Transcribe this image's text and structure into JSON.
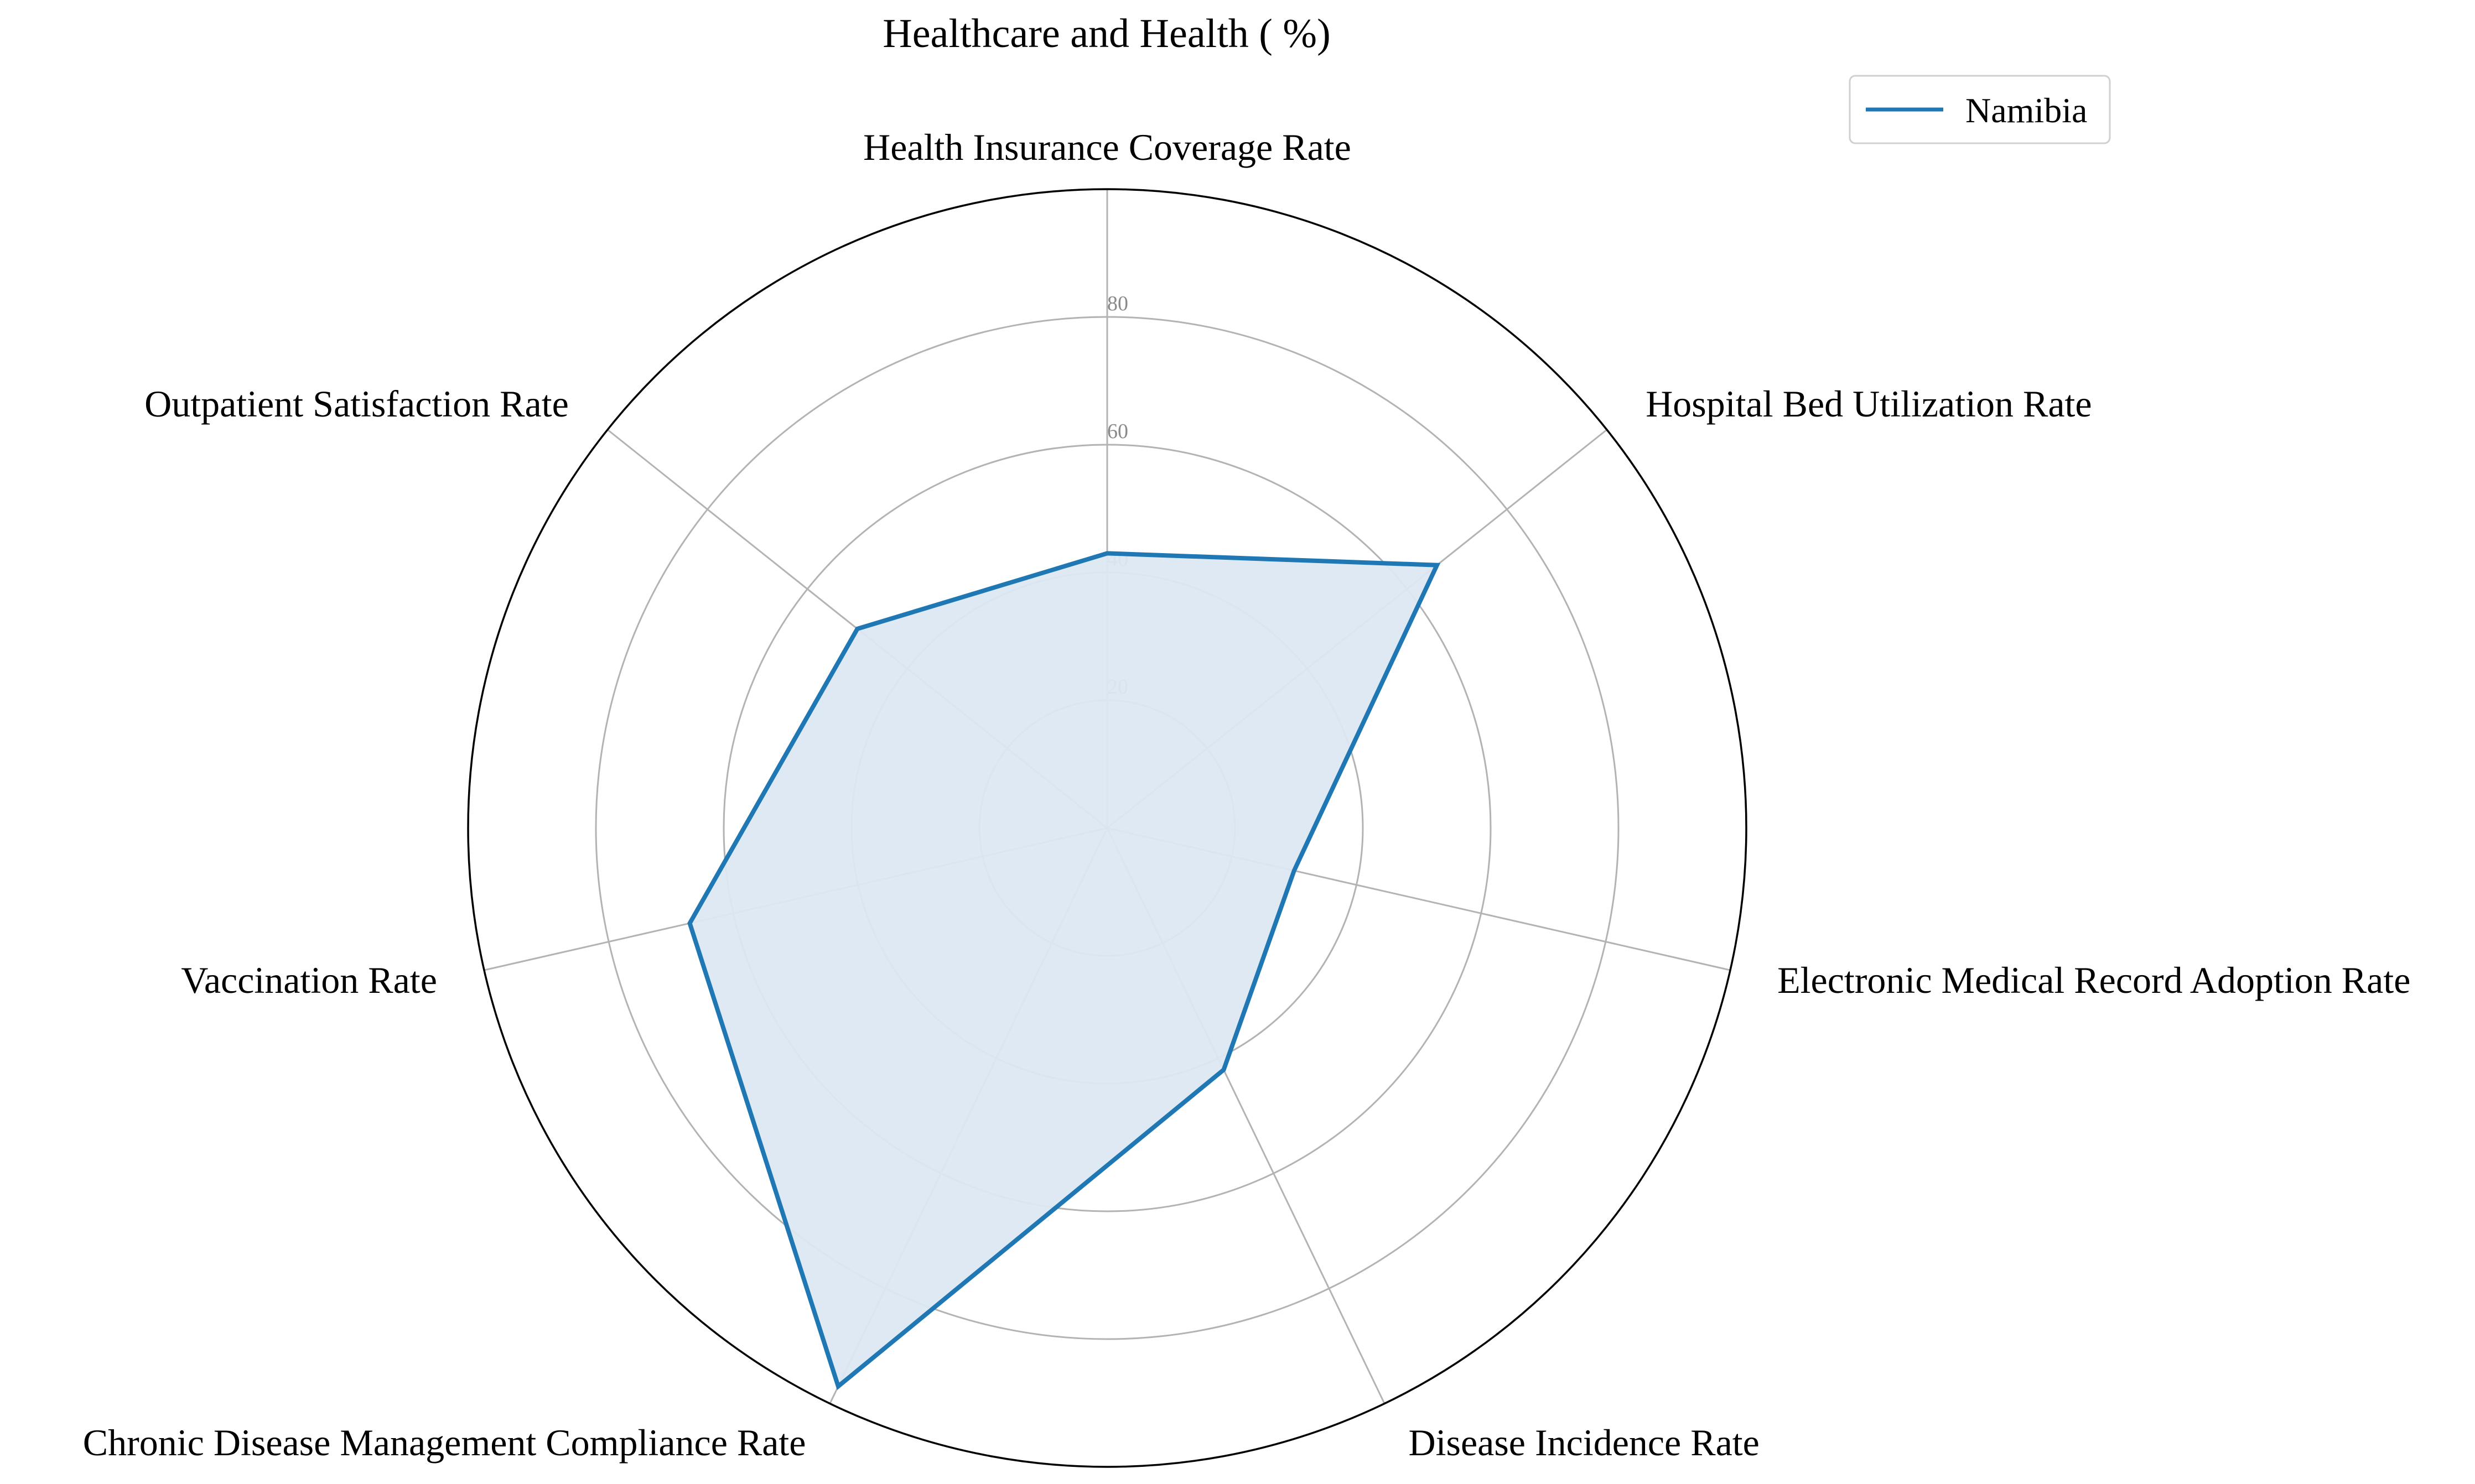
{
  "chart_data": {
    "type": "radar",
    "title": "Healthcare and Health ( %)",
    "categories": [
      "Health Insurance Coverage Rate",
      "Hospital Bed Utilization Rate",
      "Electronic Medical Record Adoption Rate",
      "Disease Incidence Rate",
      "Chronic Disease Management Compliance Rate",
      "Vaccination Rate",
      "Outpatient Satisfaction Rate"
    ],
    "series": [
      {
        "name": "Namibia",
        "values": [
          43,
          66,
          30,
          42,
          97,
          67,
          50
        ],
        "color": "#1f77b4",
        "fill": "#dce8f3"
      }
    ],
    "rlim": [
      0,
      100
    ],
    "r_ticks": [
      20,
      40,
      60,
      80
    ],
    "r_tick_labels": [
      "20",
      "40",
      "60",
      "80"
    ],
    "grid": true,
    "legend": "top-right"
  }
}
